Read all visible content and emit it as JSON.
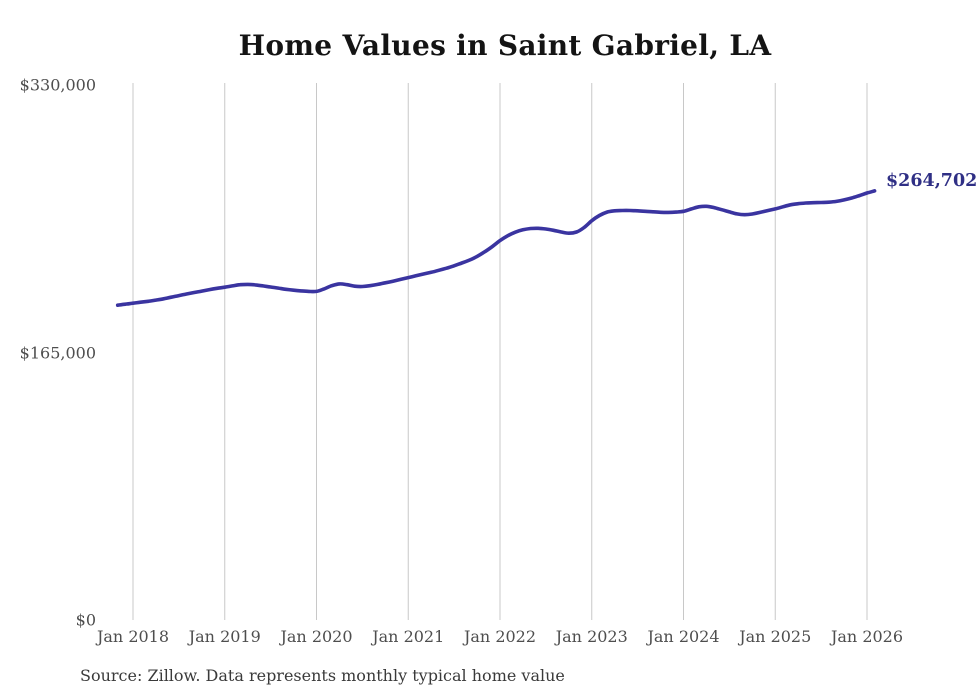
{
  "chart_data": {
    "type": "line",
    "title": "Home Values in Saint Gabriel, LA",
    "source_note": "Source: Zillow. Data represents monthly typical home value",
    "end_label": "$264,702",
    "final_value": 264702,
    "ylim": [
      0,
      330000
    ],
    "grid": "vertical-only",
    "legend": "none",
    "y_ticks": [
      {
        "label": "$0",
        "value": 0
      },
      {
        "label": "$165,000",
        "value": 165000
      },
      {
        "label": "$330,000",
        "value": 330000
      }
    ],
    "x_tick_labels": [
      "Jan 2018",
      "Jan 2019",
      "Jan 2020",
      "Jan 2021",
      "Jan 2022",
      "Jan 2023",
      "Jan 2024",
      "Jan 2025",
      "Jan 2026"
    ],
    "series": [
      {
        "name": "typical-home-value",
        "frequency": "monthly",
        "start_month": "Nov 2017",
        "end_month": "Feb 2026",
        "months_before_first_tick": 2,
        "values": [
          194200,
          194800,
          195400,
          196000,
          196600,
          197300,
          198100,
          199100,
          200100,
          201100,
          202000,
          202900,
          203800,
          204600,
          205300,
          206100,
          206800,
          207000,
          206700,
          206100,
          205400,
          204700,
          204000,
          203400,
          203000,
          202700,
          202700,
          204200,
          206200,
          207300,
          206800,
          205900,
          205700,
          206200,
          207000,
          208000,
          209000,
          210100,
          211200,
          212300,
          213400,
          214500,
          215700,
          217000,
          218500,
          220200,
          222000,
          224300,
          227100,
          230400,
          234000,
          237000,
          239200,
          240700,
          241500,
          241600,
          241200,
          240400,
          239300,
          238600,
          239300,
          242100,
          246300,
          249500,
          251600,
          252400,
          252600,
          252600,
          252400,
          252100,
          251800,
          251500,
          251400,
          251600,
          252100,
          253500,
          254900,
          255200,
          254400,
          253100,
          251700,
          250500,
          250000,
          250400,
          251400,
          252500,
          253600,
          254900,
          256100,
          256800,
          257200,
          257400,
          257500,
          257700,
          258200,
          259100,
          260300,
          261800,
          263400,
          264702
        ]
      }
    ],
    "colors": {
      "line": "#3a34a0",
      "end_label": "#2f2f85",
      "grid": "#c8c8c8",
      "axis_text": "#4e4e4e",
      "title": "#141414",
      "source": "#3a3a3a",
      "background": "#ffffff"
    }
  }
}
